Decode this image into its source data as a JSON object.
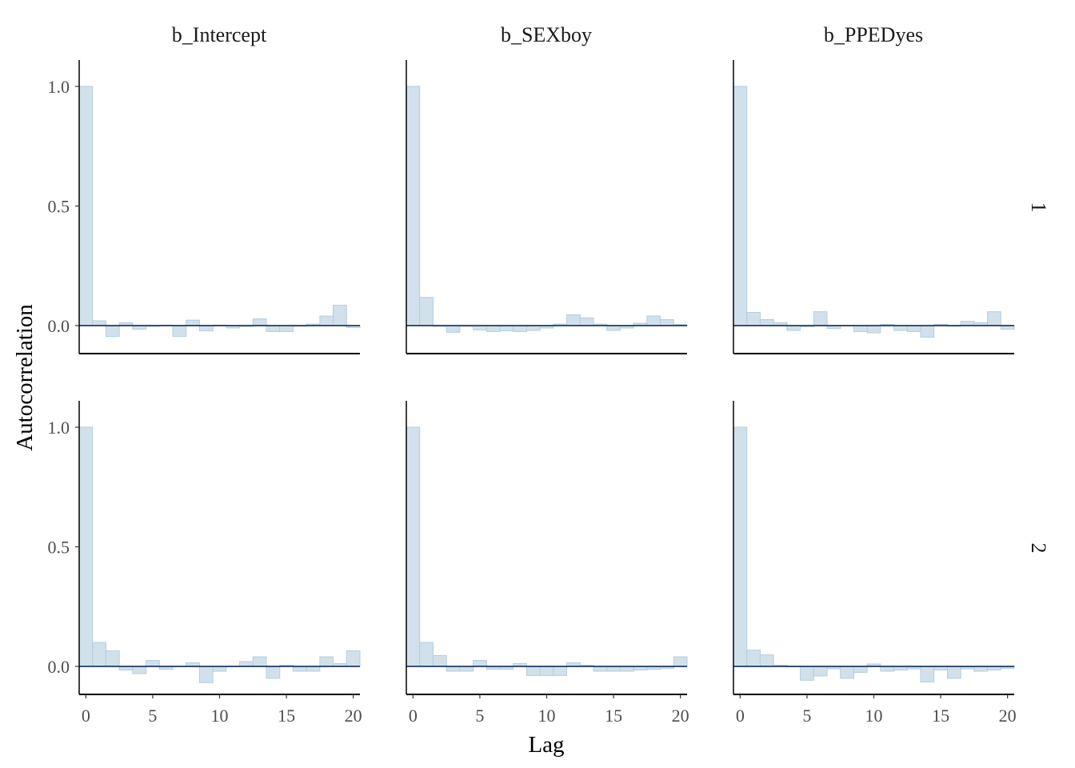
{
  "chart_data": {
    "type": "bar",
    "title": "",
    "xlabel": "Lag",
    "ylabel": "Autocorrelation",
    "xlim": [
      -0.5,
      20.5
    ],
    "ylim": [
      -0.12,
      1.1
    ],
    "x_ticks": [
      0,
      5,
      10,
      15,
      20
    ],
    "y_ticks": [
      0.0,
      0.5,
      1.0
    ],
    "y_tick_labels": [
      "0.0",
      "0.5",
      "1.0"
    ],
    "x_tick_labels": [
      "0",
      "5",
      "10",
      "15",
      "20"
    ],
    "columns": [
      "b_Intercept",
      "b_SEXboy",
      "b_PPEDyes"
    ],
    "rows": [
      "1",
      "2"
    ],
    "lags": [
      0,
      1,
      2,
      3,
      4,
      5,
      6,
      7,
      8,
      9,
      10,
      11,
      12,
      13,
      14,
      15,
      16,
      17,
      18,
      19,
      20
    ],
    "bar_fill": "#d1e1ec",
    "bar_stroke": "#b3cde0",
    "baseline_color": "#011f4b",
    "axis_color": "#000000",
    "panels": [
      {
        "row": "1",
        "column": "b_Intercept",
        "values": [
          1.0,
          0.02,
          -0.045,
          0.012,
          -0.015,
          -0.003,
          0.002,
          -0.045,
          0.023,
          -0.022,
          0.002,
          -0.01,
          -0.004,
          0.028,
          -0.025,
          -0.025,
          -0.003,
          0.006,
          0.04,
          0.085,
          -0.008
        ]
      },
      {
        "row": "1",
        "column": "b_SEXboy",
        "values": [
          1.0,
          0.118,
          -0.003,
          -0.028,
          -0.003,
          -0.018,
          -0.025,
          -0.022,
          -0.025,
          -0.02,
          -0.01,
          0.006,
          0.045,
          0.032,
          0.006,
          -0.02,
          -0.01,
          0.01,
          0.04,
          0.025,
          0.005
        ]
      },
      {
        "row": "1",
        "column": "b_PPEDyes",
        "values": [
          1.0,
          0.055,
          0.025,
          0.012,
          -0.02,
          -0.005,
          0.058,
          -0.012,
          -0.002,
          -0.025,
          -0.03,
          0.005,
          -0.02,
          -0.025,
          -0.048,
          0.005,
          -0.003,
          0.018,
          0.012,
          0.058,
          -0.015
        ]
      },
      {
        "row": "2",
        "column": "b_Intercept",
        "values": [
          1.0,
          0.1,
          0.065,
          -0.015,
          -0.03,
          0.025,
          -0.012,
          0.0,
          0.015,
          -0.068,
          -0.02,
          0.0,
          0.02,
          0.04,
          -0.05,
          0.005,
          -0.02,
          -0.02,
          0.04,
          0.012,
          0.065
        ]
      },
      {
        "row": "2",
        "column": "b_SEXboy",
        "values": [
          1.0,
          0.1,
          0.045,
          -0.02,
          -0.02,
          0.025,
          -0.012,
          -0.012,
          0.012,
          -0.038,
          -0.038,
          -0.038,
          0.015,
          0.005,
          -0.02,
          -0.02,
          -0.02,
          -0.015,
          -0.012,
          -0.008,
          0.04
        ]
      },
      {
        "row": "2",
        "column": "b_PPEDyes",
        "values": [
          1.0,
          0.068,
          0.048,
          0.005,
          0.0,
          -0.058,
          -0.04,
          -0.01,
          -0.05,
          -0.025,
          0.01,
          -0.02,
          -0.015,
          -0.01,
          -0.065,
          -0.015,
          -0.05,
          -0.01,
          -0.02,
          -0.015,
          -0.008
        ]
      }
    ]
  }
}
